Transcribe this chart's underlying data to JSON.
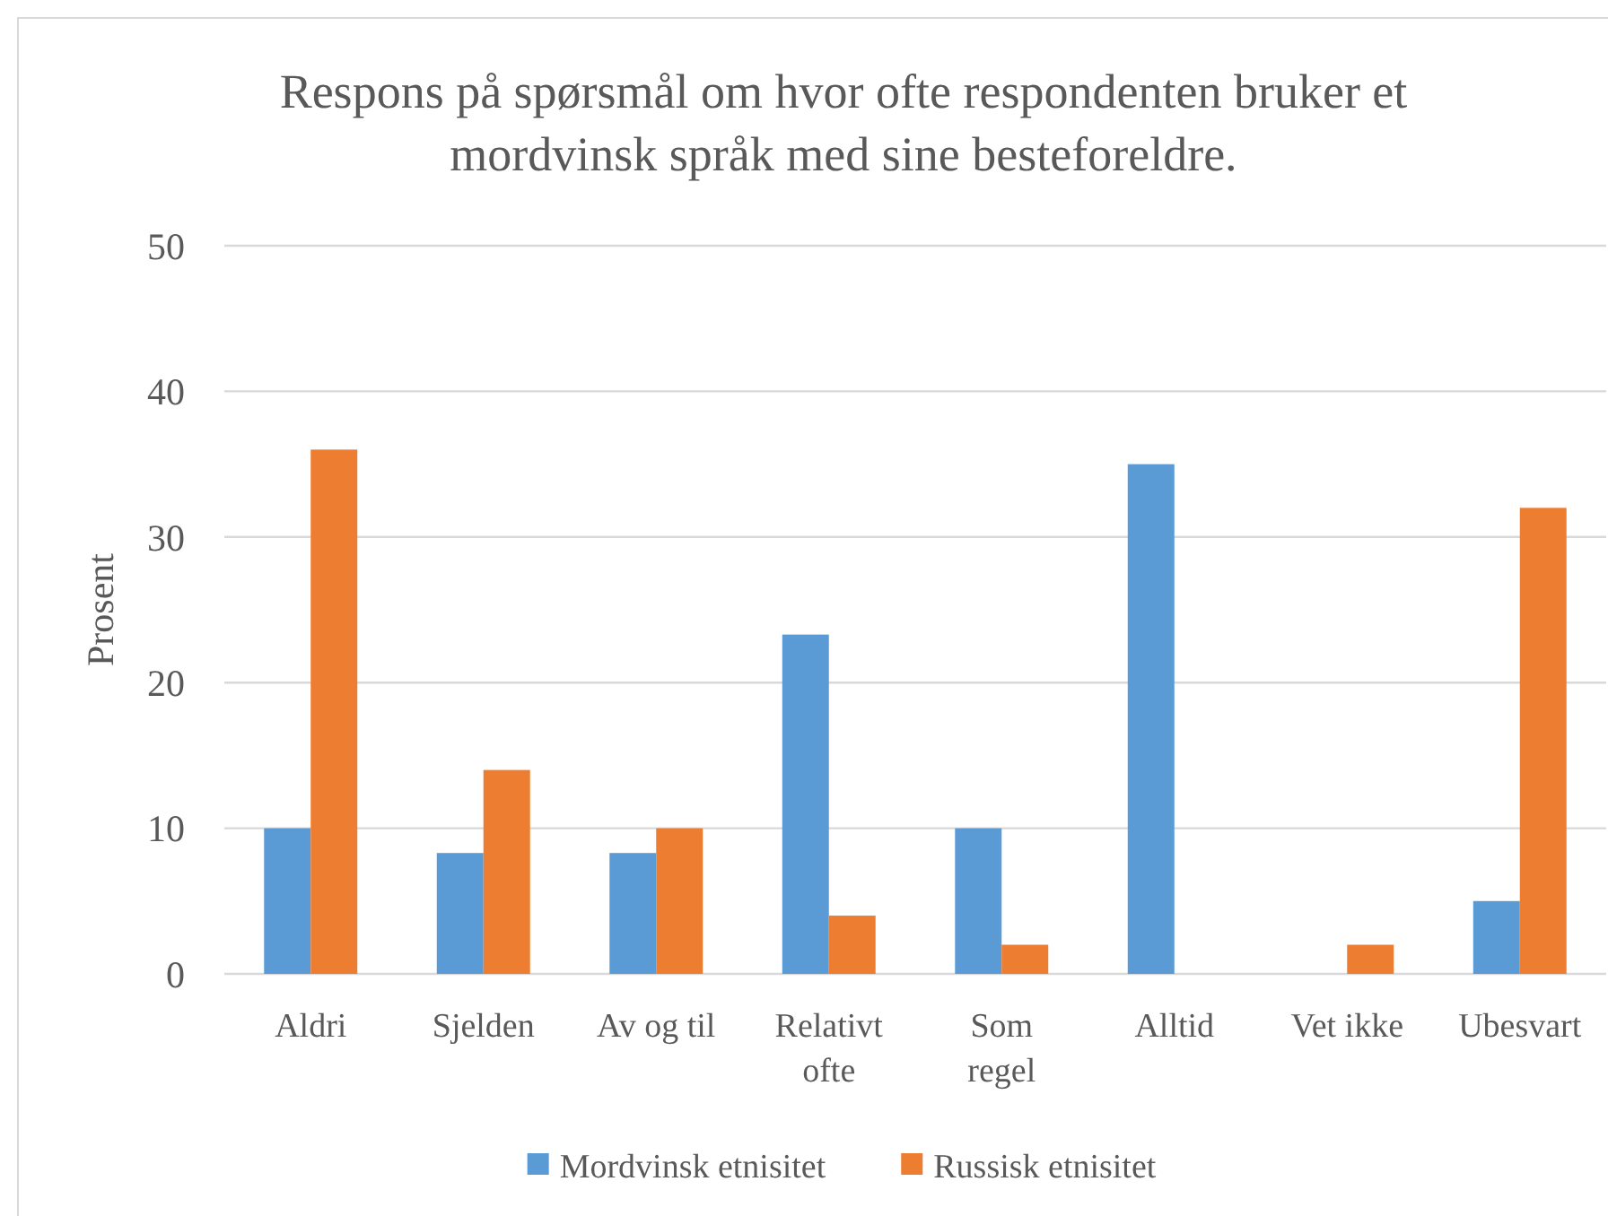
{
  "chart_data": {
    "type": "bar",
    "title": "Respons på spørsmål om hvor ofte respondenten bruker et mordvinsk språk med sine besteforeldre.",
    "ylabel": "Prosent",
    "categories": [
      "Aldri",
      "Sjelden",
      "Av og til",
      "Relativt ofte",
      "Som regel",
      "Alltid",
      "Vet ikke",
      "Ubesvart"
    ],
    "series": [
      {
        "name": "Mordvinsk etnisitet",
        "color": "#5b9bd5",
        "values": [
          10,
          8.3,
          8.3,
          23.3,
          10,
          35,
          0,
          5
        ]
      },
      {
        "name": "Russisk etnisitet",
        "color": "#ed7d31",
        "values": [
          36,
          14,
          10,
          4,
          2,
          0,
          2,
          32
        ]
      }
    ],
    "ylim": [
      0,
      50
    ],
    "yticks": [
      0,
      10,
      20,
      30,
      40,
      50
    ],
    "grid": "y",
    "legend": "bottom"
  }
}
